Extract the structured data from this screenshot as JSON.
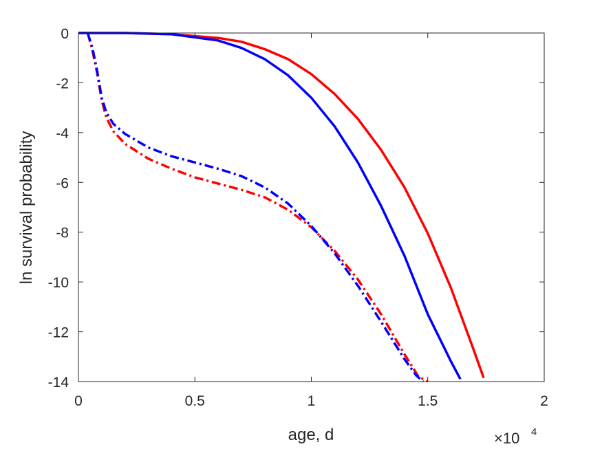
{
  "chart_data": {
    "type": "line",
    "title": "",
    "xlabel": "age, d",
    "ylabel": "ln survival probability",
    "x_exponent": {
      "base": "×10",
      "power": "4"
    },
    "xlim": [
      0,
      20000
    ],
    "ylim": [
      -14,
      0
    ],
    "xticks": [
      0,
      5000,
      10000,
      15000,
      20000
    ],
    "xtick_labels": [
      "0",
      "0.5",
      "1",
      "1.5",
      "2"
    ],
    "yticks": [
      0,
      -2,
      -4,
      -6,
      -8,
      -10,
      -12,
      -14
    ],
    "ytick_labels": [
      "0",
      "-2",
      "-4",
      "-6",
      "-8",
      "-10",
      "-12",
      "-14"
    ],
    "grid": false,
    "legend": "none",
    "series": [
      {
        "color": "#ff0000",
        "style": "solid",
        "x": [
          0,
          2000,
          4000,
          6000,
          7000,
          8000,
          9000,
          10000,
          11000,
          12000,
          13000,
          14000,
          15000,
          16000,
          17000,
          17400
        ],
        "y": [
          0,
          0,
          -0.05,
          -0.2,
          -0.35,
          -0.65,
          -1.05,
          -1.65,
          -2.45,
          -3.45,
          -4.7,
          -6.2,
          -8.05,
          -10.25,
          -12.8,
          -13.85
        ]
      },
      {
        "color": "#0000ff",
        "style": "solid",
        "x": [
          0,
          2000,
          4000,
          6000,
          7000,
          8000,
          9000,
          10000,
          11000,
          12000,
          13000,
          14000,
          15000,
          16000,
          16400
        ],
        "y": [
          0,
          0,
          -0.05,
          -0.3,
          -0.6,
          -1.05,
          -1.7,
          -2.6,
          -3.75,
          -5.2,
          -6.95,
          -8.95,
          -11.3,
          -13.2,
          -13.9
        ]
      },
      {
        "color": "#ff0000",
        "style": "dashdot",
        "x": [
          400,
          600,
          800,
          1000,
          1200,
          1500,
          2000,
          3000,
          4000,
          5000,
          6000,
          7000,
          8000,
          9000,
          10000,
          11000,
          12000,
          13000,
          14000,
          14600,
          15000
        ],
        "y": [
          0,
          -0.7,
          -1.6,
          -2.7,
          -3.4,
          -3.95,
          -4.45,
          -5.05,
          -5.45,
          -5.8,
          -6.05,
          -6.3,
          -6.6,
          -7.1,
          -7.8,
          -8.75,
          -9.9,
          -11.3,
          -12.9,
          -13.8,
          -14.0
        ]
      },
      {
        "color": "#0000ff",
        "style": "dashdot",
        "x": [
          400,
          600,
          800,
          1000,
          1200,
          1500,
          2000,
          3000,
          4000,
          5000,
          6000,
          7000,
          8000,
          9000,
          10000,
          11000,
          12000,
          13000,
          14000,
          14500,
          14800
        ],
        "y": [
          0,
          -0.6,
          -1.5,
          -2.6,
          -3.2,
          -3.65,
          -4.05,
          -4.6,
          -4.95,
          -5.2,
          -5.45,
          -5.75,
          -6.2,
          -6.85,
          -7.75,
          -8.85,
          -10.15,
          -11.6,
          -13.1,
          -13.75,
          -14.0
        ]
      }
    ]
  }
}
